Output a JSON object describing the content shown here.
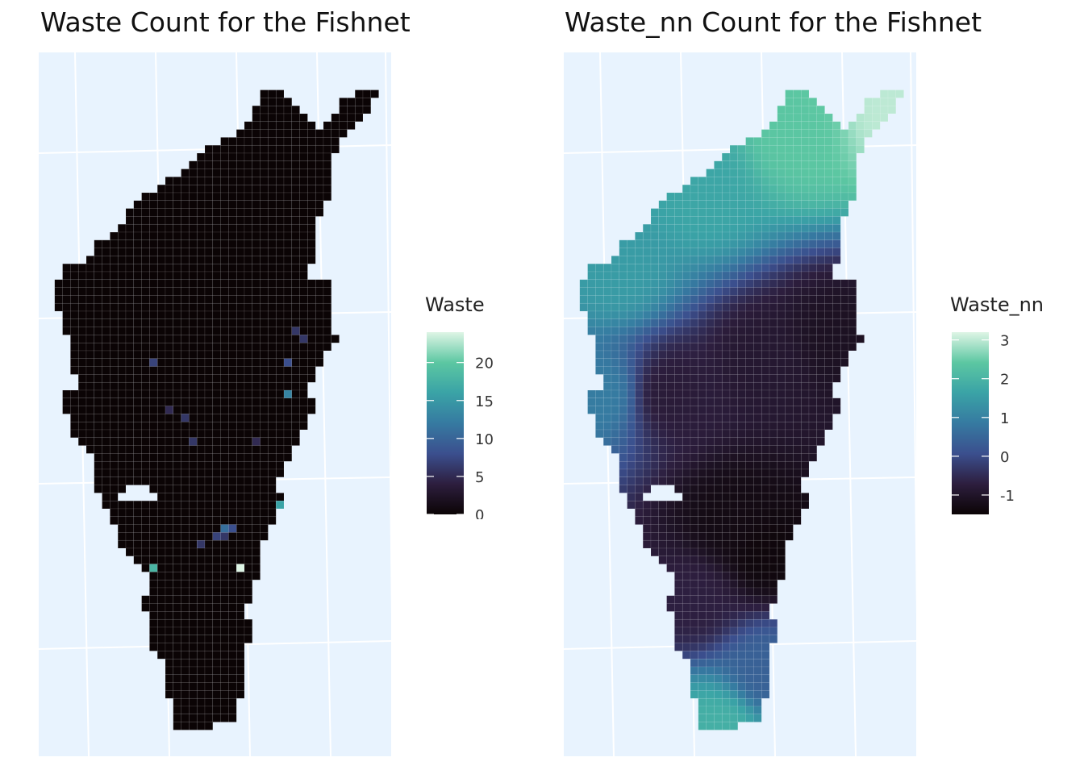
{
  "panels": [
    {
      "title": "Waste Count for the Fishnet",
      "legend": {
        "title": "Waste",
        "min": 0,
        "max": 24,
        "ticks": [
          "20",
          "15",
          "10",
          "5",
          "0"
        ],
        "tick_values": [
          20,
          15,
          10,
          5,
          0
        ]
      },
      "field": "waste"
    },
    {
      "title": "Waste_nn Count for the Fishnet",
      "legend": {
        "title": "Waste_nn",
        "min": -1.5,
        "max": 3.2,
        "ticks": [
          "3",
          "2",
          "1",
          "0",
          "-1"
        ],
        "tick_values": [
          3,
          2,
          1,
          0,
          -1
        ]
      },
      "field": "waste_nn"
    }
  ],
  "colors": {
    "background": "#e8f3fe",
    "graticule": "#ffffff",
    "ramp": [
      "#0b0405",
      "#2d1e3e",
      "#3b4f8e",
      "#367aa1",
      "#3aa3a6",
      "#5cc7a2",
      "#def5e5"
    ]
  },
  "waste_hotspots": [
    {
      "col": 31,
      "row": 32,
      "value": 6
    },
    {
      "col": 32,
      "row": 33,
      "value": 6
    },
    {
      "col": 13,
      "row": 36,
      "value": 7
    },
    {
      "col": 30,
      "row": 36,
      "value": 8
    },
    {
      "col": 30,
      "row": 40,
      "value": 13
    },
    {
      "col": 15,
      "row": 42,
      "value": 5
    },
    {
      "col": 17,
      "row": 43,
      "value": 6
    },
    {
      "col": 18,
      "row": 46,
      "value": 6
    },
    {
      "col": 26,
      "row": 46,
      "value": 5
    },
    {
      "col": 29,
      "row": 54,
      "value": 16
    },
    {
      "col": 22,
      "row": 57,
      "value": 11
    },
    {
      "col": 23,
      "row": 57,
      "value": 8
    },
    {
      "col": 21,
      "row": 58,
      "value": 7
    },
    {
      "col": 22,
      "row": 58,
      "value": 6
    },
    {
      "col": 19,
      "row": 59,
      "value": 6
    },
    {
      "col": 13,
      "row": 62,
      "value": 18
    },
    {
      "col": 24,
      "row": 62,
      "value": 24
    }
  ],
  "waste_nn_knots": [
    {
      "col": 40,
      "row": 4,
      "value": 3.0
    },
    {
      "col": 28,
      "row": 7,
      "value": 2.4
    },
    {
      "col": 16,
      "row": 14,
      "value": 1.7
    },
    {
      "col": 5,
      "row": 24,
      "value": 1.5
    },
    {
      "col": 3,
      "row": 40,
      "value": 0.9
    },
    {
      "col": 24,
      "row": 36,
      "value": -0.9
    },
    {
      "col": 12,
      "row": 40,
      "value": -0.8
    },
    {
      "col": 33,
      "row": 33,
      "value": -1.1
    },
    {
      "col": 20,
      "row": 56,
      "value": -1.3
    },
    {
      "col": 24,
      "row": 60,
      "value": -1.4
    },
    {
      "col": 15,
      "row": 66,
      "value": -0.7
    },
    {
      "col": 18,
      "row": 82,
      "value": 1.9
    },
    {
      "col": 24,
      "row": 75,
      "value": 0.4
    }
  ],
  "waste_nn_base": -0.6
}
